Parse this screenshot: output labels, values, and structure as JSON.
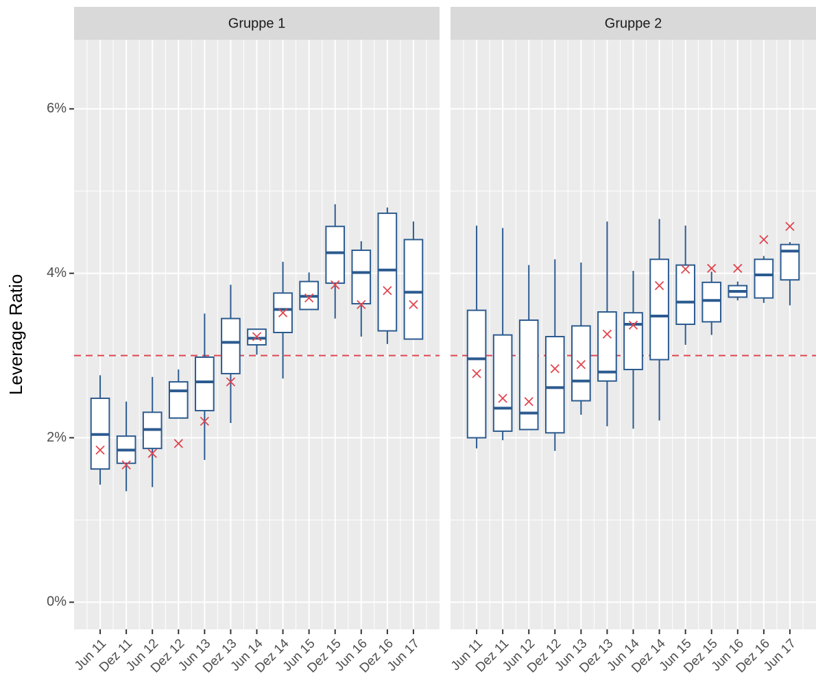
{
  "chart_data": {
    "type": "box",
    "y_label": "Leverage Ratio",
    "ylim": [
      -0.33,
      6.84
    ],
    "yticks": [
      {
        "value": 0,
        "label": "0%"
      },
      {
        "value": 2,
        "label": "2%"
      },
      {
        "value": 4,
        "label": "4%"
      },
      {
        "value": 6,
        "label": "6%"
      }
    ],
    "reference_line": 3,
    "box_color": "#2b5a8f",
    "mean_color": "#e0454f",
    "grid": true,
    "facets": [
      {
        "title": "Gruppe 1",
        "categories": [
          "Jun 11",
          "Dez 11",
          "Jun 12",
          "Dez 12",
          "Jun 13",
          "Dez 13",
          "Jun 14",
          "Dez 14",
          "Jun 15",
          "Dez 15",
          "Jun 16",
          "Dez 16",
          "Jun 17"
        ],
        "whisker_low": [
          1.43,
          1.35,
          1.4,
          2.24,
          1.73,
          2.18,
          3.01,
          2.72,
          3.56,
          3.45,
          3.23,
          3.14,
          3.2
        ],
        "q1": [
          1.62,
          1.69,
          1.87,
          2.24,
          2.33,
          2.78,
          3.13,
          3.28,
          3.56,
          3.88,
          3.63,
          3.3,
          3.2
        ],
        "median": [
          2.04,
          1.85,
          2.1,
          2.57,
          2.68,
          3.16,
          3.21,
          3.56,
          3.72,
          4.25,
          4.01,
          4.04,
          3.77
        ],
        "q3": [
          2.48,
          2.02,
          2.31,
          2.68,
          2.98,
          3.45,
          3.32,
          3.76,
          3.9,
          4.57,
          4.28,
          4.73,
          4.41
        ],
        "whisker_high": [
          2.76,
          2.44,
          2.74,
          2.83,
          3.51,
          3.86,
          3.32,
          4.14,
          4.01,
          4.84,
          4.39,
          4.8,
          4.63
        ],
        "mean": [
          1.85,
          1.67,
          1.81,
          1.93,
          2.2,
          2.68,
          3.23,
          3.52,
          3.7,
          3.86,
          3.62,
          3.79,
          3.62
        ]
      },
      {
        "title": "Gruppe 2",
        "categories": [
          "Jun 11",
          "Dez 11",
          "Jun 12",
          "Dez 12",
          "Jun 13",
          "Dez 13",
          "Jun 14",
          "Dez 14",
          "Jun 15",
          "Dez 15",
          "Jun 16",
          "Dez 16",
          "Jun 17"
        ],
        "whisker_low": [
          1.87,
          1.97,
          2.1,
          1.84,
          2.28,
          2.14,
          2.11,
          2.21,
          3.13,
          3.25,
          3.67,
          3.64,
          3.61
        ],
        "q1": [
          2.0,
          2.08,
          2.1,
          2.06,
          2.45,
          2.69,
          2.83,
          2.95,
          3.38,
          3.41,
          3.71,
          3.7,
          3.92
        ],
        "median": [
          2.96,
          2.36,
          2.3,
          2.61,
          2.69,
          2.8,
          3.38,
          3.48,
          3.65,
          3.67,
          3.78,
          3.98,
          4.27
        ],
        "q3": [
          3.55,
          3.25,
          3.43,
          3.23,
          3.36,
          3.53,
          3.52,
          4.17,
          4.1,
          3.89,
          3.85,
          4.17,
          4.35
        ],
        "whisker_high": [
          4.58,
          4.55,
          4.1,
          4.17,
          4.13,
          4.63,
          4.03,
          4.66,
          4.58,
          4.02,
          3.9,
          4.21,
          4.38
        ],
        "mean": [
          2.78,
          2.48,
          2.44,
          2.84,
          2.89,
          3.26,
          3.37,
          3.85,
          4.05,
          4.06,
          4.06,
          4.41,
          4.57
        ]
      }
    ]
  }
}
